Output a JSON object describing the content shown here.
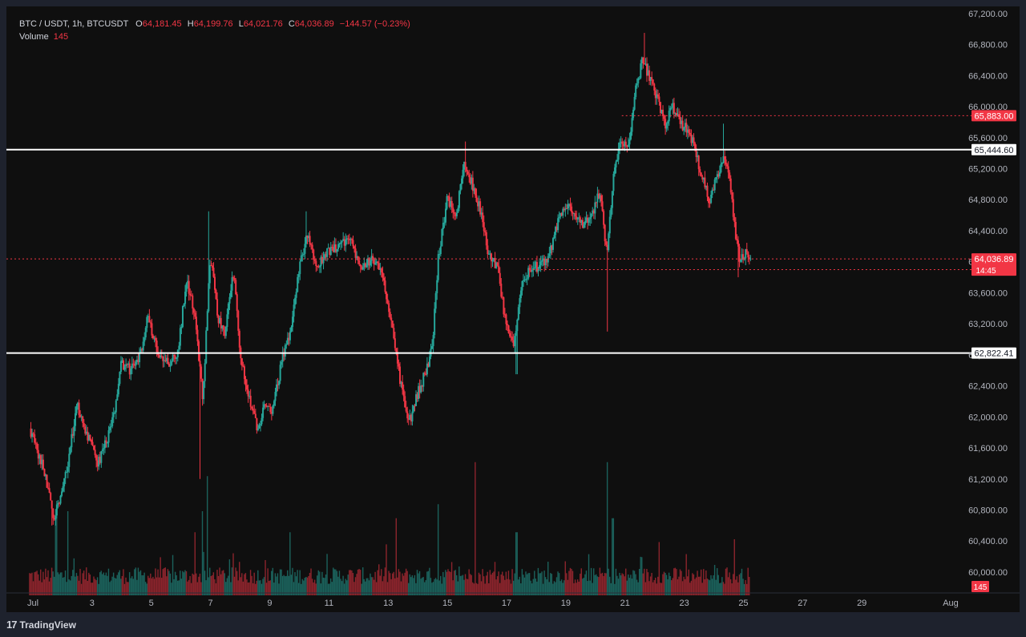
{
  "header": {
    "symbol": "BTC / USDT, 1h, BTCUSDT",
    "o_label": "O",
    "o_value": "64,181.45",
    "h_label": "H",
    "h_value": "64,199.76",
    "l_label": "L",
    "l_value": "64,021.76",
    "c_label": "C",
    "c_value": "64,036.89",
    "change": "−144.57 (−0.23%)",
    "volume_label": "Volume",
    "volume_value": "145"
  },
  "footer": {
    "brand": "TradingView"
  },
  "colors": {
    "up": "#26a69a",
    "down": "#f23645",
    "background": "#0f0f0f",
    "frame": "#1e222d",
    "text": "#d1d4dc",
    "level_line": "#ffffff"
  },
  "chart_data": {
    "type": "candlestick",
    "instrument": "BTC / USDT, 1h, BTCUSDT",
    "x_ticks": [
      "Jul",
      "3",
      "5",
      "7",
      "9",
      "11",
      "13",
      "15",
      "17",
      "19",
      "21",
      "23",
      "25",
      "27",
      "29",
      "Aug"
    ],
    "y_ticks": [
      "67,200.00",
      "66,800.00",
      "66,400.00",
      "66,000.00",
      "65,600.00",
      "65,200.00",
      "64,800.00",
      "64,400.00",
      "64,000.00",
      "63,600.00",
      "63,200.00",
      "62,800.00",
      "62,400.00",
      "62,000.00",
      "61,600.00",
      "61,200.00",
      "60,800.00",
      "60,400.00",
      "60,000.00"
    ],
    "y_range": [
      59700,
      67250
    ],
    "x_range_days": {
      "start": "Jul 1",
      "end": "Aug 1"
    },
    "price_path": [
      {
        "x": 1.0,
        "y": 61850
      },
      {
        "x": 1.5,
        "y": 61300
      },
      {
        "x": 1.8,
        "y": 60700
      },
      {
        "x": 2.2,
        "y": 61200
      },
      {
        "x": 2.6,
        "y": 62150
      },
      {
        "x": 3.0,
        "y": 61700
      },
      {
        "x": 3.3,
        "y": 61400
      },
      {
        "x": 3.6,
        "y": 61700
      },
      {
        "x": 3.9,
        "y": 62100
      },
      {
        "x": 4.1,
        "y": 62700
      },
      {
        "x": 4.4,
        "y": 62600
      },
      {
        "x": 4.7,
        "y": 62750
      },
      {
        "x": 5.0,
        "y": 63300
      },
      {
        "x": 5.3,
        "y": 62850
      },
      {
        "x": 5.7,
        "y": 62700
      },
      {
        "x": 6.0,
        "y": 62800
      },
      {
        "x": 6.3,
        "y": 63800
      },
      {
        "x": 6.6,
        "y": 63250
      },
      {
        "x": 6.85,
        "y": 62200
      },
      {
        "x": 7.1,
        "y": 64100
      },
      {
        "x": 7.35,
        "y": 63300
      },
      {
        "x": 7.6,
        "y": 63100
      },
      {
        "x": 7.9,
        "y": 63900
      },
      {
        "x": 8.1,
        "y": 62800
      },
      {
        "x": 8.4,
        "y": 62300
      },
      {
        "x": 8.7,
        "y": 61800
      },
      {
        "x": 8.95,
        "y": 62200
      },
      {
        "x": 9.2,
        "y": 62050
      },
      {
        "x": 9.5,
        "y": 62700
      },
      {
        "x": 9.8,
        "y": 63100
      },
      {
        "x": 10.1,
        "y": 63900
      },
      {
        "x": 10.4,
        "y": 64400
      },
      {
        "x": 10.7,
        "y": 63900
      },
      {
        "x": 11.0,
        "y": 64100
      },
      {
        "x": 11.4,
        "y": 64200
      },
      {
        "x": 11.8,
        "y": 64300
      },
      {
        "x": 12.2,
        "y": 63950
      },
      {
        "x": 12.6,
        "y": 64050
      },
      {
        "x": 12.9,
        "y": 63800
      },
      {
        "x": 13.2,
        "y": 63300
      },
      {
        "x": 13.5,
        "y": 62500
      },
      {
        "x": 13.8,
        "y": 61900
      },
      {
        "x": 14.1,
        "y": 62300
      },
      {
        "x": 14.4,
        "y": 62600
      },
      {
        "x": 14.6,
        "y": 62900
      },
      {
        "x": 14.8,
        "y": 64050
      },
      {
        "x": 15.1,
        "y": 64800
      },
      {
        "x": 15.4,
        "y": 64600
      },
      {
        "x": 15.7,
        "y": 65300
      },
      {
        "x": 15.9,
        "y": 65050
      },
      {
        "x": 16.2,
        "y": 64700
      },
      {
        "x": 16.5,
        "y": 64100
      },
      {
        "x": 16.8,
        "y": 63900
      },
      {
        "x": 17.1,
        "y": 63150
      },
      {
        "x": 17.35,
        "y": 62900
      },
      {
        "x": 17.6,
        "y": 63700
      },
      {
        "x": 17.9,
        "y": 63900
      },
      {
        "x": 18.2,
        "y": 63950
      },
      {
        "x": 18.5,
        "y": 64000
      },
      {
        "x": 18.8,
        "y": 64450
      },
      {
        "x": 19.1,
        "y": 64750
      },
      {
        "x": 19.4,
        "y": 64600
      },
      {
        "x": 19.7,
        "y": 64450
      },
      {
        "x": 20.0,
        "y": 64600
      },
      {
        "x": 20.25,
        "y": 64900
      },
      {
        "x": 20.5,
        "y": 64100
      },
      {
        "x": 20.75,
        "y": 65200
      },
      {
        "x": 21.0,
        "y": 65600
      },
      {
        "x": 21.2,
        "y": 65400
      },
      {
        "x": 21.45,
        "y": 66200
      },
      {
        "x": 21.7,
        "y": 66600
      },
      {
        "x": 21.95,
        "y": 66350
      },
      {
        "x": 22.2,
        "y": 66100
      },
      {
        "x": 22.45,
        "y": 65750
      },
      {
        "x": 22.7,
        "y": 66000
      },
      {
        "x": 22.95,
        "y": 65800
      },
      {
        "x": 23.2,
        "y": 65700
      },
      {
        "x": 23.45,
        "y": 65500
      },
      {
        "x": 23.7,
        "y": 65100
      },
      {
        "x": 23.95,
        "y": 64800
      },
      {
        "x": 24.2,
        "y": 65100
      },
      {
        "x": 24.45,
        "y": 65350
      },
      {
        "x": 24.65,
        "y": 65000
      },
      {
        "x": 24.85,
        "y": 64350
      },
      {
        "x": 25.0,
        "y": 64000
      },
      {
        "x": 25.2,
        "y": 64150
      },
      {
        "x": 25.35,
        "y": 64036.89
      }
    ],
    "extremes": [
      {
        "x": 1.75,
        "y": 60600,
        "kind": "low"
      },
      {
        "x": 6.75,
        "y": 61200,
        "kind": "low"
      },
      {
        "x": 7.05,
        "y": 64650,
        "kind": "high"
      },
      {
        "x": 10.35,
        "y": 64650,
        "kind": "high"
      },
      {
        "x": 15.7,
        "y": 65550,
        "kind": "high"
      },
      {
        "x": 17.45,
        "y": 62550,
        "kind": "low"
      },
      {
        "x": 20.5,
        "y": 63100,
        "kind": "low"
      },
      {
        "x": 21.75,
        "y": 66950,
        "kind": "high"
      },
      {
        "x": 24.45,
        "y": 65780,
        "kind": "high"
      },
      {
        "x": 24.95,
        "y": 63800,
        "kind": "low"
      }
    ],
    "volume": {
      "label": "Volume",
      "last_value": "145",
      "spikes": [
        {
          "x": 1.9,
          "level": 0.55
        },
        {
          "x": 2.3,
          "level": 0.6
        },
        {
          "x": 6.6,
          "level": 0.45
        },
        {
          "x": 6.85,
          "level": 0.6
        },
        {
          "x": 7.0,
          "level": 0.85
        },
        {
          "x": 9.8,
          "level": 0.45
        },
        {
          "x": 13.4,
          "level": 0.55
        },
        {
          "x": 14.8,
          "level": 0.65
        },
        {
          "x": 16.05,
          "level": 0.95
        },
        {
          "x": 17.45,
          "level": 0.45
        },
        {
          "x": 20.5,
          "level": 0.95
        },
        {
          "x": 20.7,
          "level": 0.55
        },
        {
          "x": 22.25,
          "level": 0.38
        },
        {
          "x": 24.8,
          "level": 0.4
        }
      ]
    },
    "horizontal_lines": [
      {
        "price": 65444.6,
        "label": "65,444.60",
        "style": "solid",
        "color": "#ffffff"
      },
      {
        "price": 62822.41,
        "label": "62,822.41",
        "style": "solid",
        "color": "#ffffff"
      },
      {
        "price": 65883.0,
        "label": "65,883.00",
        "style": "dotted",
        "color": "#f23645",
        "from_x": 21.0
      },
      {
        "price": 63899.06,
        "label": "63,899.06",
        "style": "dotted",
        "color": "#f23645",
        "from_x": 18.0
      },
      {
        "price": 64036.89,
        "label": "64,036.89",
        "sublabel": "14:45",
        "style": "dotted",
        "color": "#f23645"
      }
    ],
    "volume_tag": "145"
  }
}
